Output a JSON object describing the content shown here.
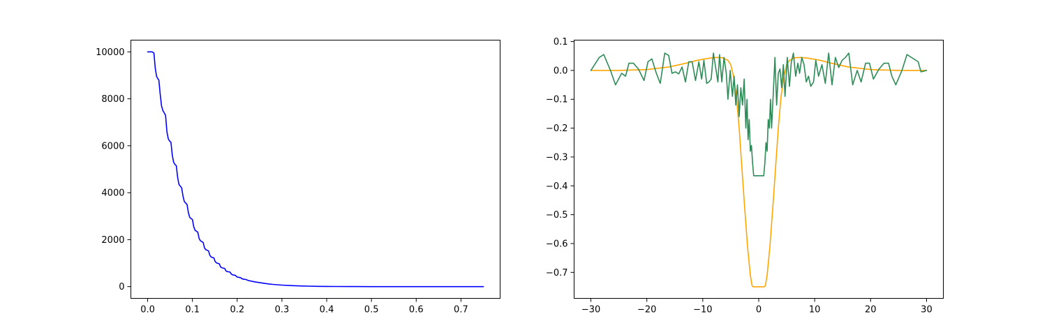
{
  "chart_data": [
    {
      "type": "line",
      "title": "",
      "xlabel": "",
      "ylabel": "",
      "xlim": [
        -0.0375,
        0.7875
      ],
      "ylim": [
        -500,
        10500
      ],
      "grid": false,
      "x_ticks": [
        0.0,
        0.1,
        0.2,
        0.3,
        0.4,
        0.5,
        0.6,
        0.7
      ],
      "x_tick_labels": [
        "0.0",
        "0.1",
        "0.2",
        "0.3",
        "0.4",
        "0.5",
        "0.6",
        "0.7"
      ],
      "y_ticks": [
        0,
        2000,
        4000,
        6000,
        8000,
        10000
      ],
      "y_tick_labels": [
        "0",
        "2000",
        "4000",
        "6000",
        "8000",
        "10000"
      ],
      "series": [
        {
          "color": "#0000ff",
          "x": [
            0.0,
            0.005,
            0.01,
            0.014,
            0.017,
            0.02,
            0.023,
            0.025,
            0.028,
            0.031,
            0.034,
            0.037,
            0.04,
            0.043,
            0.046,
            0.049,
            0.052,
            0.055,
            0.058,
            0.061,
            0.064,
            0.067,
            0.07,
            0.073,
            0.076,
            0.079,
            0.082,
            0.085,
            0.088,
            0.091,
            0.094,
            0.097,
            0.1,
            0.103,
            0.106,
            0.109,
            0.112,
            0.115,
            0.118,
            0.121,
            0.124,
            0.127,
            0.13,
            0.133,
            0.136,
            0.139,
            0.142,
            0.145,
            0.148,
            0.151,
            0.154,
            0.157,
            0.16,
            0.163,
            0.166,
            0.169,
            0.172,
            0.175,
            0.178,
            0.181,
            0.184,
            0.187,
            0.19,
            0.193,
            0.196,
            0.199,
            0.202,
            0.205,
            0.208,
            0.211,
            0.214,
            0.217,
            0.22,
            0.225,
            0.23,
            0.235,
            0.24,
            0.245,
            0.25,
            0.26,
            0.27,
            0.28,
            0.29,
            0.3,
            0.32,
            0.34,
            0.36,
            0.38,
            0.4,
            0.42,
            0.45,
            0.5,
            0.55,
            0.6,
            0.65,
            0.7,
            0.75
          ],
          "y": [
            10000,
            10000,
            10000,
            9950,
            9300,
            8950,
            8850,
            8800,
            8200,
            7700,
            7500,
            7400,
            7300,
            6600,
            6300,
            6200,
            6150,
            5600,
            5300,
            5200,
            5150,
            4650,
            4350,
            4280,
            4200,
            3850,
            3620,
            3560,
            3500,
            3150,
            2950,
            2900,
            2860,
            2550,
            2400,
            2360,
            2320,
            2050,
            1950,
            1920,
            1880,
            1650,
            1570,
            1550,
            1520,
            1330,
            1260,
            1240,
            1220,
            1060,
            1010,
            990,
            970,
            840,
            800,
            790,
            775,
            670,
            640,
            630,
            620,
            530,
            500,
            490,
            480,
            420,
            400,
            390,
            380,
            330,
            320,
            310,
            300,
            260,
            240,
            220,
            200,
            185,
            170,
            140,
            115,
            95,
            80,
            65,
            45,
            30,
            20,
            12,
            8,
            5,
            3,
            1,
            0,
            0,
            0,
            0,
            0
          ]
        }
      ]
    },
    {
      "type": "line",
      "title": "",
      "xlabel": "",
      "ylabel": "",
      "xlim": [
        -33,
        33
      ],
      "ylim": [
        -0.79,
        0.105
      ],
      "grid": false,
      "x_ticks": [
        -30,
        -20,
        -10,
        0,
        10,
        20,
        30
      ],
      "x_tick_labels": [
        "−30",
        "−20",
        "−10",
        "0",
        "10",
        "20",
        "30"
      ],
      "y_ticks": [
        0.1,
        0.0,
        -0.1,
        -0.2,
        -0.3,
        -0.4,
        -0.5,
        -0.6,
        -0.7
      ],
      "y_tick_labels": [
        "0.1",
        "0.0",
        "−0.1",
        "−0.2",
        "−0.3",
        "−0.4",
        "−0.5",
        "−0.6",
        "−0.7"
      ],
      "series": [
        {
          "color": "#ffa500",
          "x": [
            -30,
            -25,
            -20,
            -16,
            -13,
            -11,
            -9,
            -7.5,
            -6.5,
            -5.5,
            -5,
            -4.5,
            -4,
            -3.5,
            -3,
            -2.5,
            -2,
            -1.5,
            -1.2,
            -1,
            1,
            1.2,
            1.5,
            2,
            2.5,
            3,
            3.5,
            4,
            4.5,
            5,
            5.5,
            6.5,
            7.5,
            9,
            11,
            13,
            16,
            20,
            25,
            30
          ],
          "y": [
            0.0,
            0.0,
            0.003,
            0.012,
            0.025,
            0.035,
            0.042,
            0.045,
            0.044,
            0.035,
            0.02,
            -0.02,
            -0.09,
            -0.2,
            -0.34,
            -0.48,
            -0.61,
            -0.71,
            -0.745,
            -0.75,
            -0.75,
            -0.745,
            -0.71,
            -0.61,
            -0.48,
            -0.34,
            -0.2,
            -0.09,
            -0.02,
            0.02,
            0.035,
            0.044,
            0.045,
            0.042,
            0.035,
            0.025,
            0.012,
            0.003,
            0.0,
            0.0
          ]
        },
        {
          "color": "#2e8b57",
          "x": [
            -30,
            -29,
            -28.5,
            -27.7,
            -26.5,
            -25.6,
            -24.5,
            -23.8,
            -23.2,
            -22.4,
            -21.5,
            -20.5,
            -19.8,
            -19.1,
            -18.3,
            -17.6,
            -16.8,
            -16.1,
            -15.5,
            -14.9,
            -14.3,
            -13.7,
            -13.1,
            -12.5,
            -11.9,
            -11.3,
            -10.7,
            -10.2,
            -9.8,
            -9.3,
            -8.9,
            -8.5,
            -8.1,
            -7.7,
            -7.3,
            -7,
            -6.6,
            -6.2,
            -5.8,
            -5.5,
            -5.1,
            -4.7,
            -4.4,
            -4.1,
            -3.8,
            -3.5,
            -3.2,
            -2.9,
            -2.6,
            -2.3,
            -2.1,
            -1.9,
            -1.7,
            -1.5,
            -1.3,
            -1.1,
            -0.9,
            0.9,
            1.1,
            1.3,
            1.5,
            1.7,
            1.9,
            2.1,
            2.3,
            2.6,
            2.9,
            3.2,
            3.5,
            3.8,
            4.1,
            4.4,
            4.7,
            5.1,
            5.5,
            5.8,
            6.2,
            6.6,
            7,
            7.3,
            7.7,
            8.1,
            8.5,
            8.9,
            9.3,
            9.8,
            10.2,
            10.7,
            11.3,
            11.9,
            12.5,
            13.1,
            13.7,
            14.3,
            14.9,
            15.5,
            16.1,
            16.8,
            17.6,
            18.3,
            19.1,
            19.8,
            20.5,
            21.5,
            22.4,
            23.2,
            23.8,
            24.5,
            25.6,
            26.5,
            27.7,
            28.5,
            29,
            30
          ],
          "y": [
            0.0,
            0.03,
            0.045,
            0.055,
            0.0,
            -0.05,
            -0.01,
            -0.02,
            0.025,
            0.025,
            0.005,
            -0.035,
            0.03,
            0.04,
            -0.01,
            -0.045,
            0.06,
            0.052,
            -0.01,
            -0.005,
            -0.012,
            0.012,
            -0.04,
            0.03,
            0.03,
            -0.035,
            0.03,
            -0.03,
            0.035,
            -0.045,
            -0.04,
            -0.03,
            0.06,
            0.01,
            -0.04,
            0.055,
            -0.04,
            0.045,
            -0.01,
            -0.1,
            0.0,
            -0.09,
            -0.02,
            -0.12,
            -0.05,
            -0.16,
            -0.06,
            -0.12,
            -0.03,
            -0.2,
            -0.1,
            -0.24,
            -0.17,
            -0.28,
            -0.26,
            -0.32,
            -0.365,
            -0.365,
            -0.32,
            -0.25,
            -0.28,
            -0.17,
            -0.2,
            -0.1,
            -0.2,
            -0.08,
            0.045,
            -0.12,
            -0.01,
            0.005,
            -0.06,
            0.02,
            -0.09,
            0.045,
            -0.055,
            0.025,
            0.06,
            -0.02,
            0.025,
            -0.01,
            0.045,
            0.02,
            -0.04,
            -0.02,
            -0.055,
            -0.04,
            0.035,
            -0.02,
            0.02,
            -0.045,
            0.06,
            -0.05,
            0.045,
            0.01,
            0.035,
            0.045,
            0.06,
            -0.05,
            0.0,
            -0.04,
            0.025,
            0.025,
            -0.03,
            0.005,
            0.025,
            0.025,
            -0.02,
            -0.05,
            0.0,
            0.055,
            0.04,
            0.03,
            -0.005,
            0.0
          ]
        }
      ]
    }
  ]
}
